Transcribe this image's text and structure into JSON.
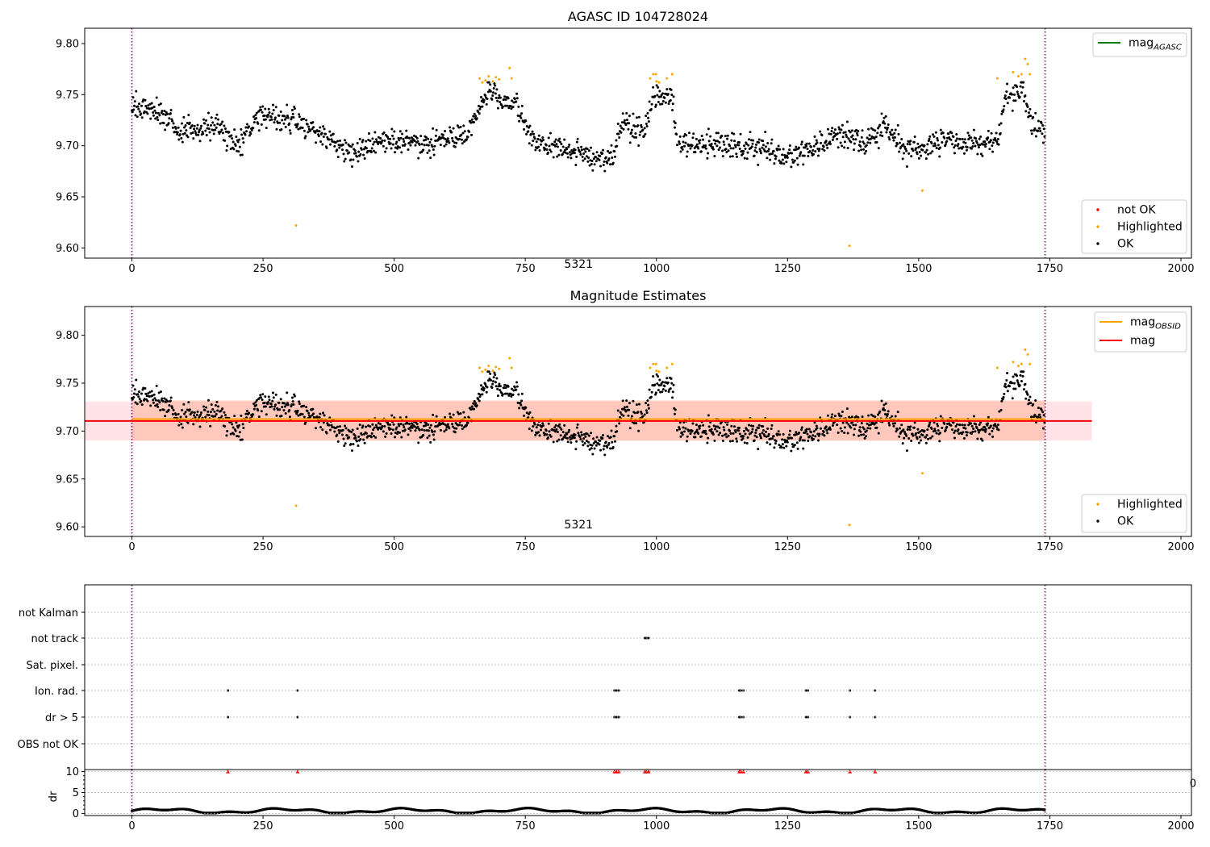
{
  "figure": {
    "chart_titles": [
      "AGASC ID 104728024",
      "Magnitude Estimates"
    ],
    "obsid_label": "5321"
  },
  "chart_data": [
    {
      "type": "scatter",
      "title": "AGASC ID 104728024",
      "xlim": [
        -90,
        2020
      ],
      "ylim": [
        9.59,
        9.815
      ],
      "xticks": [
        0,
        250,
        500,
        750,
        1000,
        1250,
        1500,
        1750,
        2000
      ],
      "yticks": [
        9.6,
        9.65,
        9.7,
        9.75,
        9.8
      ],
      "ytick_labels": [
        "9.60",
        "9.65",
        "9.70",
        "9.75",
        "9.80"
      ],
      "grid": false,
      "legend_upper": {
        "position": "top-right",
        "entries": [
          {
            "label": "mag",
            "subscript": "AGASC",
            "color": "#008000",
            "kind": "line"
          }
        ]
      },
      "legend_lower": {
        "position": "bottom-right",
        "entries": [
          {
            "label": "not OK",
            "color": "#ff0000",
            "kind": "marker"
          },
          {
            "label": "Highlighted",
            "color": "#ffa500",
            "kind": "marker"
          },
          {
            "label": "OK",
            "color": "#000000",
            "kind": "marker"
          }
        ]
      },
      "hlines": [
        {
          "name": "mag_agasc",
          "y": 9.582,
          "color": "#008000"
        }
      ],
      "vlines": [
        {
          "x": 0,
          "color": "#800080",
          "style": "dotted"
        },
        {
          "x": 1741,
          "color": "#800080",
          "style": "dotted"
        }
      ],
      "annotation": {
        "text_key": "obsid",
        "x": 870,
        "y": 9.582
      },
      "series": [
        {
          "name": "OK",
          "color": "#000000",
          "generated": "dense light curve of ~1740 samples, values between 9.66 and 9.76 mag"
        },
        {
          "name": "Highlighted",
          "color": "#ffa500",
          "values": [
            [
              663,
              9.766
            ],
            [
              668,
              9.762
            ],
            [
              674,
              9.764
            ],
            [
              680,
              9.768
            ],
            [
              688,
              9.763
            ],
            [
              694,
              9.767
            ],
            [
              700,
              9.765
            ],
            [
              720,
              9.776
            ],
            [
              724,
              9.766
            ],
            [
              313,
              9.622
            ],
            [
              988,
              9.766
            ],
            [
              994,
              9.77
            ],
            [
              999,
              9.77
            ],
            [
              1005,
              9.762
            ],
            [
              1020,
              9.766
            ],
            [
              1030,
              9.77
            ],
            [
              1000,
              9.763
            ],
            [
              1368,
              9.602
            ],
            [
              1507,
              9.656
            ],
            [
              1650,
              9.766
            ],
            [
              1680,
              9.772
            ],
            [
              1690,
              9.768
            ],
            [
              1696,
              9.77
            ],
            [
              1703,
              9.785
            ],
            [
              1708,
              9.78
            ],
            [
              1712,
              9.77
            ]
          ]
        }
      ]
    },
    {
      "type": "scatter",
      "title": "Magnitude Estimates",
      "xlim": [
        -90,
        2020
      ],
      "ylim": [
        9.59,
        9.83
      ],
      "xticks": [
        0,
        250,
        500,
        750,
        1000,
        1250,
        1500,
        1750,
        2000
      ],
      "yticks": [
        9.6,
        9.65,
        9.7,
        9.75,
        9.8
      ],
      "ytick_labels": [
        "9.60",
        "9.65",
        "9.70",
        "9.75",
        "9.80"
      ],
      "grid": false,
      "legend_upper": {
        "position": "top-right",
        "entries": [
          {
            "label": "mag",
            "subscript": "OBSID",
            "color": "#ffa500",
            "kind": "line"
          },
          {
            "label": "mag",
            "color": "#ff0000",
            "kind": "line"
          }
        ]
      },
      "legend_lower": {
        "position": "bottom-right",
        "entries": [
          {
            "label": "Highlighted",
            "color": "#ffa500",
            "kind": "marker"
          },
          {
            "label": "OK",
            "color": "#000000",
            "kind": "marker"
          }
        ]
      },
      "mag": 9.7105,
      "mag_band": [
        9.69,
        9.731
      ],
      "mag_band_xrange": [
        -90,
        1830
      ],
      "mag_obsid": 9.7125,
      "mag_obsid_band": [
        9.69,
        9.732
      ],
      "mag_obsid_xrange": [
        0,
        1741
      ],
      "vlines": [
        {
          "x": 0,
          "color": "#800080",
          "style": "dotted"
        },
        {
          "x": 1741,
          "color": "#800080",
          "style": "dotted"
        }
      ],
      "annotation": {
        "text_key": "obsid",
        "x": 870,
        "y": 9.6
      }
    },
    {
      "type": "scatter",
      "title": "",
      "xlim": [
        -90,
        2020
      ],
      "flag_rows": [
        "not Kalman",
        "not track",
        "Sat. pixel.",
        "Ion. rad.",
        "dr > 5",
        "OBS not OK"
      ],
      "flags": {
        "not track": [
          978,
          981,
          985
        ],
        "Ion. rad.": [
          183,
          316,
          920,
          924,
          928,
          1158,
          1161,
          1166,
          1285,
          1289,
          1369,
          1417
        ],
        "dr > 5": [
          183,
          316,
          920,
          924,
          928,
          1158,
          1161,
          1166,
          1285,
          1289,
          1369,
          1417
        ]
      }
    },
    {
      "type": "scatter",
      "title": "",
      "xlim": [
        -90,
        2020
      ],
      "ylim": [
        -0.5,
        10.5
      ],
      "ylabel": "dr",
      "xticks": [
        0,
        250,
        500,
        750,
        1000,
        1250,
        1500,
        1750,
        2000
      ],
      "yticks": [
        0,
        5,
        10
      ],
      "ytick_labels": [
        "0",
        "5",
        "10"
      ],
      "clipped_points_at_10": [
        183,
        316,
        920,
        924,
        928,
        978,
        981,
        985,
        1158,
        1161,
        1166,
        1285,
        1289,
        1369,
        1417
      ],
      "edge_tick_fragment": "0"
    }
  ]
}
